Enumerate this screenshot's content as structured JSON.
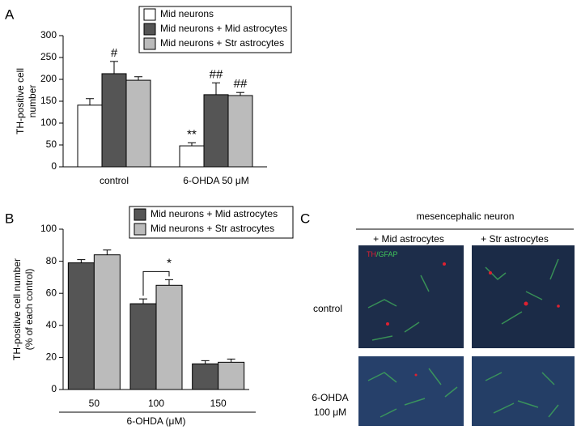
{
  "chart_data": [
    {
      "type": "bar",
      "label": "A",
      "ylabel": [
        "TH-positive cell",
        "number"
      ],
      "categories": [
        "control",
        "6-OHDA 50 μM"
      ],
      "series": [
        {
          "name": "Mid neurons",
          "color": "#ffffff",
          "values": [
            141,
            48
          ],
          "errors": [
            15,
            7
          ]
        },
        {
          "name": "Mid neurons + Mid astrocytes",
          "color": "#555555",
          "values": [
            213,
            165
          ],
          "errors": [
            28,
            27
          ]
        },
        {
          "name": "Mid neurons + Str astrocytes",
          "color": "#bbbbbb",
          "values": [
            198,
            163
          ],
          "errors": [
            8,
            7
          ]
        }
      ],
      "annotations": [
        "#",
        "**",
        "##",
        "##"
      ],
      "ylim": [
        0,
        300
      ],
      "yticks": [
        0,
        50,
        100,
        150,
        200,
        250,
        300
      ],
      "grid": false
    },
    {
      "type": "bar",
      "label": "B",
      "ylabel": [
        "TH-positive cell number",
        "(% of each control)"
      ],
      "xlabel": "6-OHDA (μM)",
      "categories": [
        "50",
        "100",
        "150"
      ],
      "series": [
        {
          "name": "Mid neurons + Mid astrocytes",
          "color": "#555555",
          "values": [
            79,
            53.5,
            16
          ],
          "errors": [
            2,
            3,
            2
          ]
        },
        {
          "name": "Mid neurons + Str astrocytes",
          "color": "#bbbbbb",
          "values": [
            84,
            65,
            17
          ],
          "errors": [
            3,
            3.5,
            2
          ]
        }
      ],
      "annotations": [
        "*"
      ],
      "ylim": [
        0,
        100
      ],
      "yticks": [
        0,
        20,
        40,
        60,
        80,
        100
      ],
      "grid": false
    }
  ],
  "panel_c": {
    "label": "C",
    "title": "mesencephalic neuron",
    "columns": [
      "+ Mid astrocytes",
      "+ Str astrocytes"
    ],
    "rows": [
      [
        "control"
      ],
      [
        "6-OHDA",
        "100 μM"
      ]
    ],
    "stain": [
      "TH",
      "/GFAP"
    ]
  }
}
